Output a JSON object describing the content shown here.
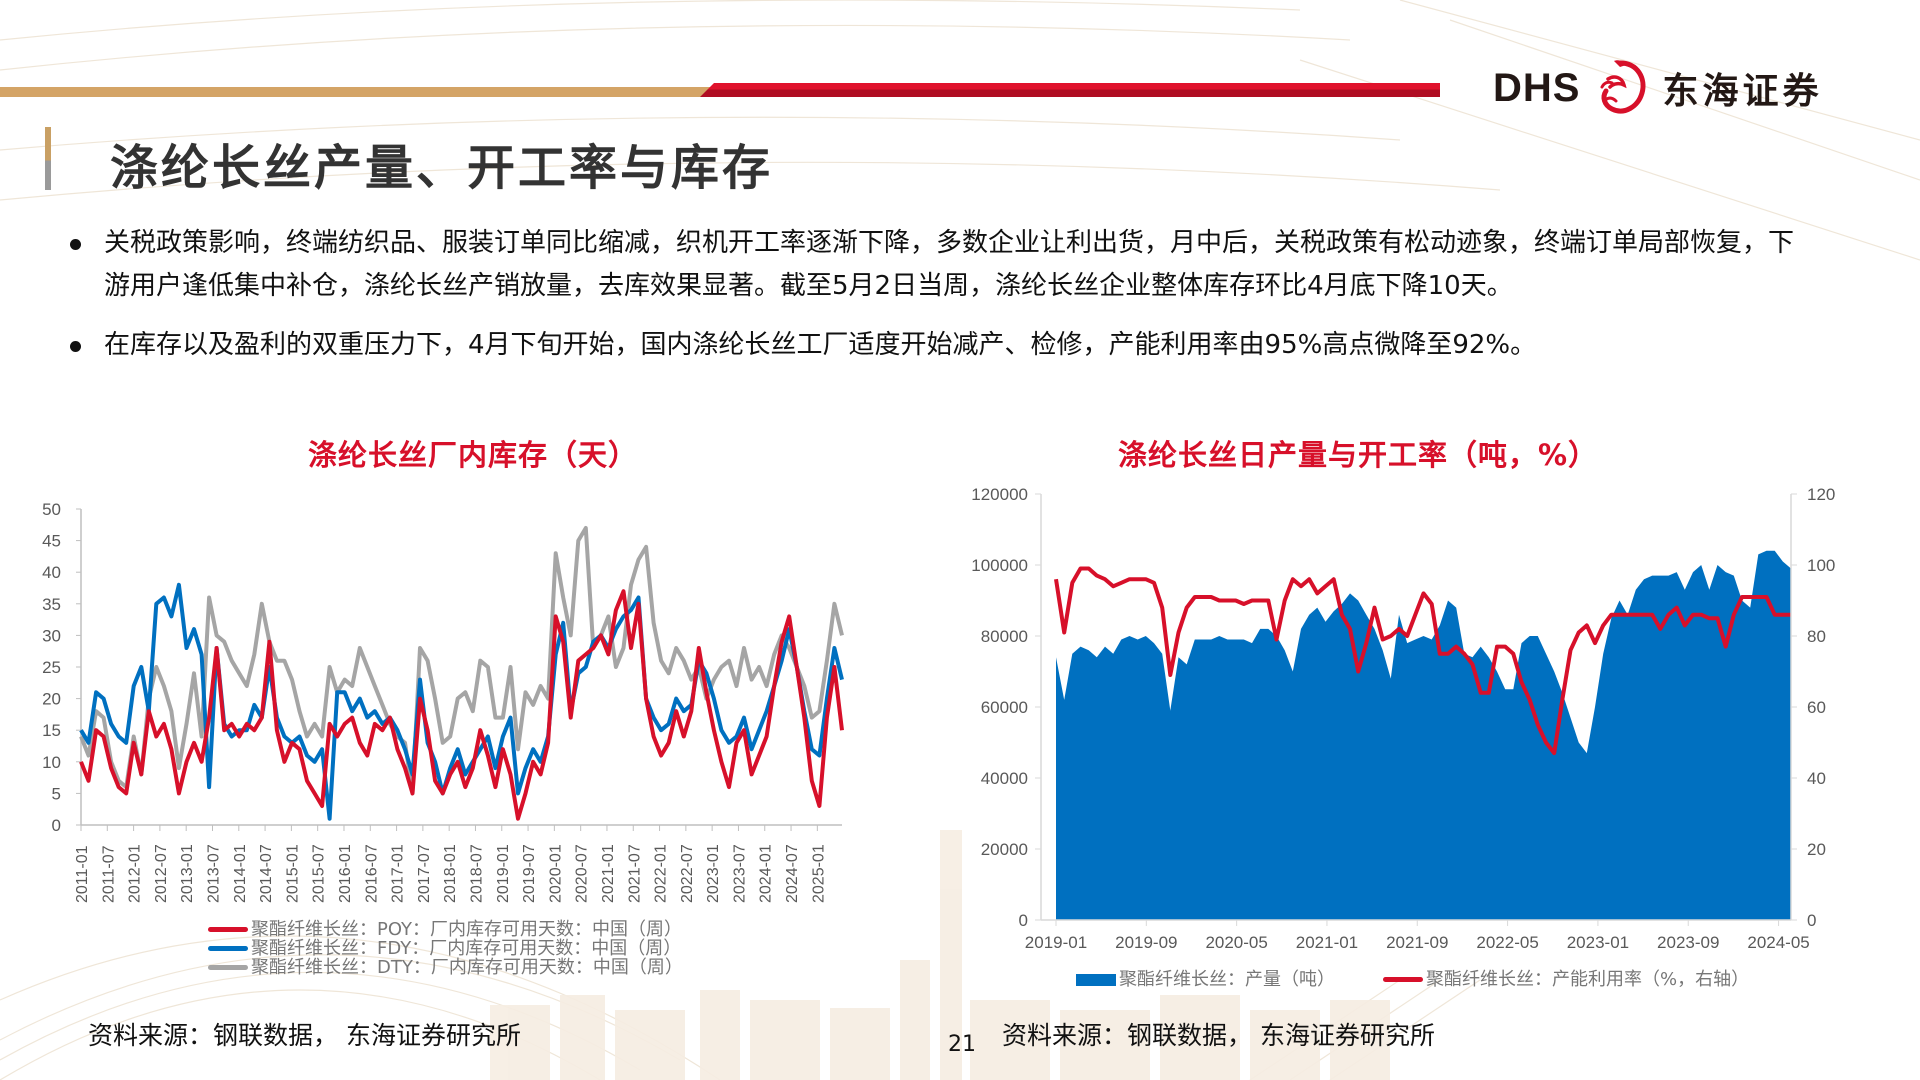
{
  "header": {
    "brand_en": "DHS",
    "brand_cn": "东海证券",
    "colors": {
      "tan": "#d4a466",
      "red": "#d7102a",
      "dark_red": "#b00d22"
    }
  },
  "page": {
    "title": "涤纶长丝产量、开工率与库存",
    "page_number": "21"
  },
  "bullets": [
    "关税政策影响，终端纺织品、服装订单同比缩减，织机开工率逐渐下降，多数企业让利出货，月中后，关税政策有松动迹象，终端订单局部恢复，下游用户逢低集中补仓，涤纶长丝产销放量，去库效果显著。截至5月2日当周，涤纶长丝企业整体库存环比4月底下降10天。",
    "在库存以及盈利的双重压力下，4月下旬开始，国内涤纶长丝工厂适度开始减产、检修，产能利用率由95%高点微降至92%。"
  ],
  "left_panel": {
    "title": "涤纶长丝厂内库存（天）",
    "source": "资料来源：钢联数据， 东海证券研究所"
  },
  "right_panel": {
    "title": "涤纶长丝日产量与开工率（吨，%）",
    "source": "资料来源：钢联数据， 东海证券研究所"
  },
  "chart_data": [
    {
      "type": "line",
      "title": "涤纶长丝厂内库存（天）",
      "xlabel": "",
      "ylabel": "",
      "ylim": [
        0,
        50
      ],
      "yticks": [
        0,
        5,
        10,
        15,
        20,
        25,
        30,
        35,
        40,
        45,
        50
      ],
      "grid": false,
      "legend_position": "bottom",
      "x_tick_labels": [
        "2011-01",
        "2011-07",
        "2012-01",
        "2012-07",
        "2013-01",
        "2013-07",
        "2014-01",
        "2014-07",
        "2015-01",
        "2015-07",
        "2016-01",
        "2016-07",
        "2017-01",
        "2017-07",
        "2018-01",
        "2018-07",
        "2019-01",
        "2019-07",
        "2020-01",
        "2020-07",
        "2021-01",
        "2021-07",
        "2022-01",
        "2022-07",
        "2023-01",
        "2023-07",
        "2024-01",
        "2024-07",
        "2025-01"
      ],
      "x_start": "2011-01",
      "x_step_months": 3,
      "series": [
        {
          "name": "聚酯纤维长丝：POY：厂内库存可用天数：中国（周）",
          "color": "#d7102a",
          "values": [
            10,
            7,
            15,
            14,
            9,
            6,
            5,
            13,
            8,
            18,
            14,
            16,
            12,
            5,
            10,
            13,
            10,
            17,
            28,
            15,
            16,
            14,
            16,
            15,
            17,
            29,
            15,
            10,
            13,
            12,
            7,
            5,
            3,
            16,
            14,
            16,
            17,
            13,
            11,
            16,
            15,
            17,
            12,
            9,
            5,
            20,
            15,
            7,
            5,
            8,
            10,
            6,
            9,
            15,
            11,
            6,
            12,
            8,
            1,
            5,
            10,
            8,
            13,
            33,
            29,
            17,
            26,
            27,
            28,
            30,
            27,
            34,
            37,
            28,
            35,
            20,
            14,
            11,
            13,
            18,
            14,
            18,
            28,
            21,
            15,
            10,
            6,
            13,
            15,
            8,
            11,
            14,
            22,
            29,
            33,
            25,
            17,
            7,
            3,
            17,
            25,
            15
          ]
        },
        {
          "name": "聚酯纤维长丝：FDY：厂内库存可用天数：中国（周）",
          "color": "#0070c0",
          "values": [
            15,
            13,
            21,
            20,
            16,
            14,
            13,
            22,
            25,
            18,
            35,
            36,
            33,
            38,
            28,
            31,
            27,
            6,
            28,
            16,
            14,
            15,
            15,
            19,
            17,
            25,
            17,
            14,
            13,
            14,
            11,
            10,
            12,
            1,
            21,
            21,
            18,
            20,
            17,
            18,
            16,
            17,
            15,
            12,
            8,
            23,
            13,
            10,
            5,
            9,
            12,
            8,
            10,
            12,
            14,
            9,
            14,
            17,
            5,
            9,
            12,
            10,
            14,
            27,
            32,
            18,
            24,
            25,
            29,
            30,
            28,
            31,
            33,
            34,
            36,
            20,
            17,
            15,
            16,
            20,
            18,
            19,
            26,
            24,
            20,
            15,
            13,
            14,
            17,
            12,
            15,
            18,
            22,
            26,
            31,
            25,
            18,
            12,
            11,
            20,
            28,
            23
          ]
        },
        {
          "name": "聚酯纤维长丝：DTY：厂内库存可用天数：中国（周）",
          "color": "#a5a5a5",
          "values": [
            14,
            11,
            18,
            17,
            10,
            7,
            6,
            14,
            8,
            20,
            25,
            22,
            18,
            9,
            16,
            24,
            14,
            36,
            30,
            29,
            26,
            24,
            22,
            27,
            35,
            29,
            26,
            26,
            23,
            18,
            14,
            16,
            14,
            25,
            21,
            23,
            22,
            28,
            25,
            22,
            19,
            16,
            14,
            13,
            5,
            28,
            26,
            20,
            13,
            14,
            20,
            21,
            18,
            26,
            25,
            17,
            17,
            25,
            12,
            21,
            19,
            22,
            20,
            43,
            36,
            30,
            45,
            47,
            28,
            30,
            33,
            25,
            28,
            38,
            42,
            44,
            32,
            26,
            24,
            28,
            26,
            23,
            25,
            20,
            23,
            25,
            26,
            22,
            28,
            23,
            25,
            22,
            27,
            30,
            28,
            25,
            22,
            17,
            18,
            26,
            35,
            30
          ]
        }
      ]
    },
    {
      "type": "area+line",
      "title": "涤纶长丝日产量与开工率（吨，%）",
      "xlabel": "",
      "ylabel": "",
      "ylim": [
        0,
        120000
      ],
      "y2lim": [
        0,
        120
      ],
      "yticks": [
        0,
        20000,
        40000,
        60000,
        80000,
        100000,
        120000
      ],
      "y2ticks": [
        0,
        20,
        40,
        60,
        80,
        100,
        120
      ],
      "grid": false,
      "legend_position": "bottom",
      "x_tick_labels": [
        "2019-01",
        "2019-09",
        "2020-05",
        "2021-01",
        "2021-09",
        "2022-05",
        "2023-01",
        "2023-09",
        "2024-05"
      ],
      "x_start": "2019-01",
      "x_step_months": 1,
      "series": [
        {
          "name": "聚酯纤维长丝：产量（吨）",
          "axis": "left",
          "kind": "area",
          "color": "#0070c0",
          "values": [
            74000,
            62000,
            75000,
            77000,
            76000,
            74000,
            77000,
            75000,
            79000,
            80000,
            79000,
            80000,
            78000,
            75000,
            59000,
            74000,
            72000,
            79000,
            79000,
            79000,
            80000,
            79000,
            79000,
            79000,
            78000,
            82000,
            82000,
            80000,
            76000,
            70000,
            82000,
            86000,
            88000,
            84000,
            87000,
            89000,
            92000,
            90000,
            86000,
            82000,
            76000,
            68000,
            86000,
            78000,
            79000,
            80000,
            79000,
            83000,
            90000,
            88000,
            75000,
            74000,
            77000,
            74000,
            70000,
            65000,
            65000,
            78000,
            80000,
            80000,
            75000,
            70000,
            64000,
            57000,
            50000,
            47000,
            60000,
            75000,
            85000,
            90000,
            86000,
            93000,
            96000,
            97000,
            97000,
            97000,
            98000,
            93000,
            98000,
            100000,
            93000,
            100000,
            98000,
            97000,
            90000,
            88000,
            103000,
            104000,
            104000,
            101000,
            99000
          ]
        },
        {
          "name": "聚酯纤维长丝：产能利用率（%，右轴）",
          "axis": "right",
          "kind": "line",
          "color": "#d7102a",
          "values": [
            96,
            81,
            95,
            99,
            99,
            97,
            96,
            94,
            95,
            96,
            96,
            96,
            95,
            88,
            69,
            81,
            88,
            91,
            91,
            91,
            90,
            90,
            90,
            89,
            90,
            90,
            90,
            79,
            90,
            96,
            94,
            96,
            92,
            94,
            96,
            86,
            82,
            70,
            78,
            88,
            79,
            80,
            82,
            80,
            86,
            92,
            89,
            75,
            75,
            77,
            75,
            72,
            64,
            64,
            77,
            77,
            75,
            67,
            62,
            55,
            50,
            47,
            62,
            76,
            81,
            83,
            78,
            83,
            86,
            86,
            86,
            86,
            86,
            86,
            82,
            86,
            88,
            83,
            86,
            86,
            85,
            85,
            77,
            86,
            91,
            91,
            91,
            91,
            86,
            86,
            86
          ]
        }
      ]
    }
  ]
}
